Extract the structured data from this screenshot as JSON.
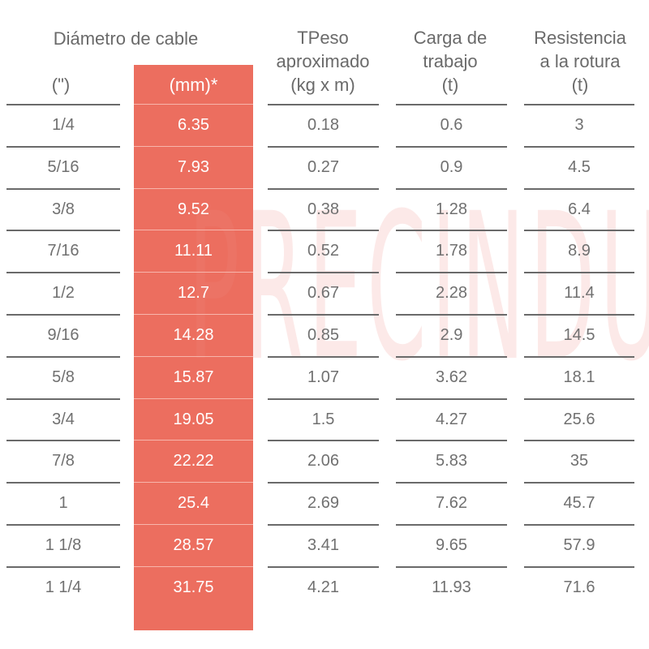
{
  "headers": {
    "diameter_group": "Diámetro de cable",
    "inch": "(\")",
    "mm": "(mm)*",
    "weight": [
      "TPeso",
      "aproximado",
      "(kg x m)"
    ],
    "work_load": [
      "Carga de",
      "trabajo",
      "(t)"
    ],
    "breaking": [
      "Resistencia",
      "a la rotura",
      "(t)"
    ]
  },
  "watermark": "PRECINDUS S.A.C.",
  "accent_color": "#ec6e5f",
  "rows": [
    {
      "inch": "1/4",
      "mm": "6.35",
      "weight": "0.18",
      "load": "0.6",
      "breaking": "3"
    },
    {
      "inch": "5/16",
      "mm": "7.93",
      "weight": "0.27",
      "load": "0.9",
      "breaking": "4.5"
    },
    {
      "inch": "3/8",
      "mm": "9.52",
      "weight": "0.38",
      "load": "1.28",
      "breaking": "6.4"
    },
    {
      "inch": "7/16",
      "mm": "11.11",
      "weight": "0.52",
      "load": "1.78",
      "breaking": "8.9"
    },
    {
      "inch": "1/2",
      "mm": "12.7",
      "weight": "0.67",
      "load": "2.28",
      "breaking": "11.4"
    },
    {
      "inch": "9/16",
      "mm": "14.28",
      "weight": "0.85",
      "load": "2.9",
      "breaking": "14.5"
    },
    {
      "inch": "5/8",
      "mm": "15.87",
      "weight": "1.07",
      "load": "3.62",
      "breaking": "18.1"
    },
    {
      "inch": "3/4",
      "mm": "19.05",
      "weight": "1.5",
      "load": "4.27",
      "breaking": "25.6"
    },
    {
      "inch": "7/8",
      "mm": "22.22",
      "weight": "2.06",
      "load": "5.83",
      "breaking": "35"
    },
    {
      "inch": "1",
      "mm": "25.4",
      "weight": "2.69",
      "load": "7.62",
      "breaking": "45.7"
    },
    {
      "inch": "1 1/8",
      "mm": "28.57",
      "weight": "3.41",
      "load": "9.65",
      "breaking": "57.9"
    },
    {
      "inch": "1 1/4",
      "mm": "31.75",
      "weight": "4.21",
      "load": "11.93",
      "breaking": "71.6"
    }
  ]
}
